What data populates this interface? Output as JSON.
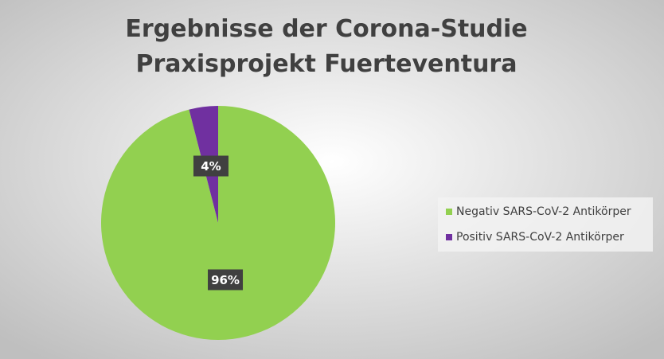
{
  "chart_data": {
    "type": "pie",
    "title": [
      "Ergebnisse der Corona-Studie",
      "Praxisprojekt Fuerteventura"
    ],
    "categories": [
      "Negativ SARS-CoV-2 Antikörper",
      "Positiv SARS-CoV-2 Antikörper"
    ],
    "values": [
      96,
      4
    ],
    "value_labels": [
      "96%",
      "4%"
    ],
    "colors": [
      "#92d050",
      "#7030a0"
    ],
    "legend": "right"
  }
}
